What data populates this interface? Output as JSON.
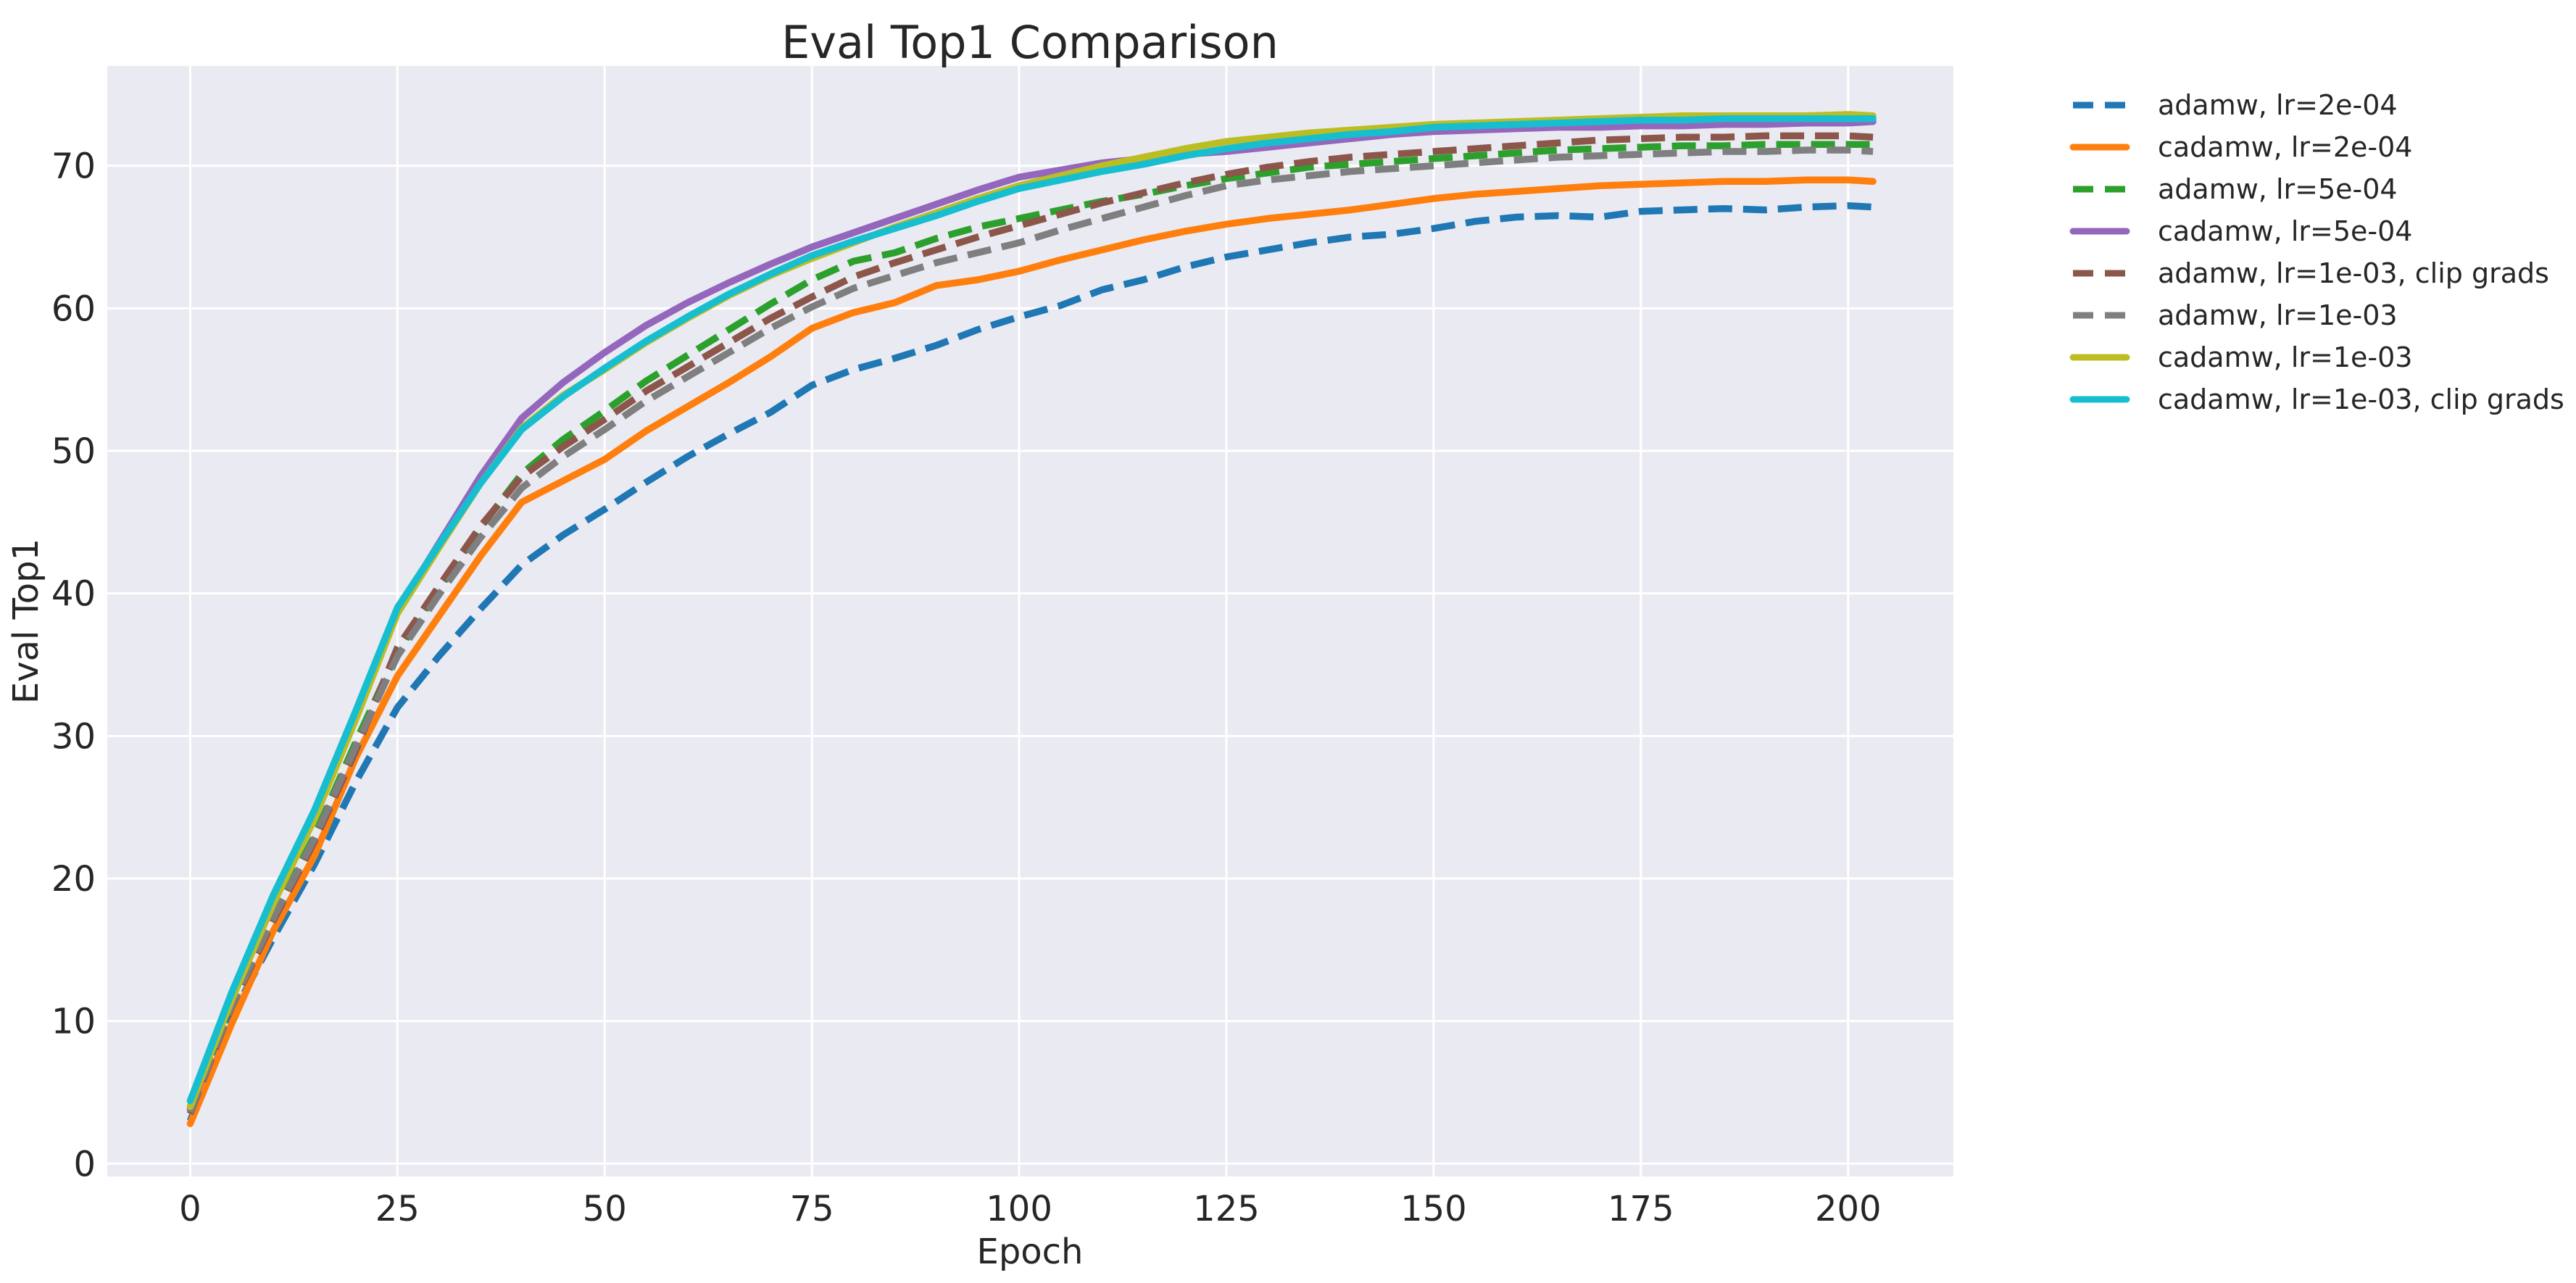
{
  "figure": {
    "background": "#ffffff",
    "axes_background": "#eaeaf2",
    "grid_color": "#ffffff",
    "text_color": "#262626"
  },
  "chart_data": {
    "type": "line",
    "title": "Eval Top1 Comparison",
    "xlabel": "Epoch",
    "ylabel": "Eval Top1",
    "grid": true,
    "legend_position": "outside-right",
    "xlim": [
      -10,
      212.7
    ],
    "ylim": [
      -0.9,
      77.0
    ],
    "x_ticks": [
      0,
      25,
      50,
      75,
      100,
      125,
      150,
      175,
      200
    ],
    "y_ticks": [
      0,
      10,
      20,
      30,
      40,
      50,
      60,
      70
    ],
    "x": [
      0,
      5,
      10,
      15,
      20,
      25,
      30,
      35,
      40,
      45,
      50,
      55,
      60,
      65,
      70,
      75,
      80,
      85,
      90,
      95,
      100,
      105,
      110,
      115,
      120,
      125,
      130,
      135,
      140,
      145,
      150,
      155,
      160,
      165,
      170,
      175,
      180,
      185,
      190,
      195,
      200,
      203
    ],
    "series": [
      {
        "name": "adamw, lr=2e-04",
        "color": "#1f77b4",
        "style": "dashed",
        "values": [
          3.0,
          10.3,
          15.8,
          21.0,
          26.8,
          32.0,
          35.6,
          38.9,
          42.0,
          44.1,
          45.9,
          47.8,
          49.6,
          51.2,
          52.7,
          54.6,
          55.7,
          56.5,
          57.4,
          58.5,
          59.4,
          60.2,
          61.3,
          62.0,
          62.9,
          63.6,
          64.1,
          64.6,
          65.0,
          65.2,
          65.6,
          66.1,
          66.4,
          66.5,
          66.4,
          66.8,
          66.9,
          67.0,
          66.9,
          67.1,
          67.2,
          67.1
        ]
      },
      {
        "name": "cadamw, lr=2e-04",
        "color": "#ff7f0e",
        "style": "solid",
        "values": [
          2.8,
          9.8,
          16.3,
          21.6,
          28.5,
          34.2,
          38.4,
          42.6,
          46.4,
          47.9,
          49.4,
          51.4,
          53.1,
          54.8,
          56.6,
          58.6,
          59.7,
          60.4,
          61.6,
          62.0,
          62.6,
          63.4,
          64.1,
          64.8,
          65.4,
          65.9,
          66.3,
          66.6,
          66.9,
          67.3,
          67.7,
          68.0,
          68.2,
          68.4,
          68.6,
          68.7,
          68.8,
          68.9,
          68.9,
          69.0,
          69.0,
          68.9
        ]
      },
      {
        "name": "adamw, lr=5e-04",
        "color": "#2ca02c",
        "style": "dashed",
        "values": [
          3.5,
          11.2,
          17.4,
          23.0,
          29.6,
          35.9,
          40.3,
          44.6,
          48.4,
          50.8,
          52.8,
          54.9,
          56.7,
          58.5,
          60.3,
          62.0,
          63.3,
          63.9,
          64.9,
          65.7,
          66.3,
          66.9,
          67.5,
          68.0,
          68.6,
          69.1,
          69.5,
          69.9,
          70.1,
          70.3,
          70.5,
          70.7,
          70.9,
          71.1,
          71.2,
          71.3,
          71.4,
          71.4,
          71.5,
          71.5,
          71.5,
          71.5
        ]
      },
      {
        "name": "cadamw, lr=5e-04",
        "color": "#9467bd",
        "style": "solid",
        "values": [
          3.8,
          11.8,
          18.4,
          24.4,
          31.6,
          38.8,
          43.5,
          48.2,
          52.3,
          54.8,
          56.9,
          58.8,
          60.4,
          61.8,
          63.1,
          64.3,
          65.3,
          66.3,
          67.3,
          68.3,
          69.2,
          69.7,
          70.2,
          70.5,
          70.8,
          71.0,
          71.3,
          71.6,
          71.9,
          72.2,
          72.4,
          72.5,
          72.6,
          72.7,
          72.7,
          72.8,
          72.8,
          72.9,
          72.9,
          73.0,
          73.0,
          73.1
        ]
      },
      {
        "name": "adamw, lr=1e-03, clip grads",
        "color": "#8c564b",
        "style": "dashed",
        "values": [
          3.5,
          11.0,
          17.0,
          22.6,
          29.0,
          36.2,
          40.5,
          44.7,
          48.2,
          50.3,
          52.2,
          54.2,
          55.9,
          57.6,
          59.3,
          60.8,
          62.2,
          63.2,
          64.1,
          65.0,
          65.8,
          66.6,
          67.4,
          68.1,
          68.8,
          69.4,
          69.9,
          70.3,
          70.6,
          70.8,
          71.0,
          71.2,
          71.4,
          71.6,
          71.8,
          71.9,
          72.0,
          72.0,
          72.1,
          72.1,
          72.1,
          72.0
        ]
      },
      {
        "name": "adamw, lr=1e-03",
        "color": "#7f7f7f",
        "style": "dashed",
        "values": [
          3.6,
          11.1,
          17.2,
          22.8,
          29.3,
          35.6,
          39.9,
          43.9,
          47.4,
          49.6,
          51.5,
          53.5,
          55.2,
          56.9,
          58.6,
          60.1,
          61.4,
          62.3,
          63.2,
          63.9,
          64.6,
          65.5,
          66.3,
          67.1,
          67.9,
          68.6,
          69.0,
          69.3,
          69.6,
          69.8,
          70.0,
          70.2,
          70.4,
          70.6,
          70.7,
          70.8,
          70.9,
          71.0,
          71.0,
          71.1,
          71.1,
          71.0
        ]
      },
      {
        "name": "cadamw, lr=1e-03",
        "color": "#bcbd22",
        "style": "solid",
        "values": [
          4.0,
          11.5,
          18.2,
          24.2,
          31.2,
          38.6,
          43.2,
          47.7,
          51.6,
          53.9,
          55.7,
          57.6,
          59.3,
          60.9,
          62.3,
          63.5,
          64.6,
          65.7,
          66.7,
          67.7,
          68.6,
          69.3,
          70.0,
          70.6,
          71.2,
          71.7,
          72.0,
          72.3,
          72.5,
          72.7,
          72.9,
          73.0,
          73.1,
          73.2,
          73.3,
          73.4,
          73.5,
          73.5,
          73.5,
          73.5,
          73.6,
          73.5
        ]
      },
      {
        "name": "cadamw, lr=1e-03, clip grads",
        "color": "#17becf",
        "style": "solid",
        "values": [
          4.4,
          12.0,
          18.8,
          24.8,
          31.8,
          39.0,
          43.4,
          47.7,
          51.5,
          53.8,
          55.8,
          57.7,
          59.4,
          61.0,
          62.4,
          63.7,
          64.7,
          65.6,
          66.5,
          67.5,
          68.4,
          69.0,
          69.6,
          70.1,
          70.7,
          71.2,
          71.6,
          71.9,
          72.2,
          72.4,
          72.7,
          72.8,
          72.9,
          73.0,
          73.1,
          73.2,
          73.2,
          73.3,
          73.3,
          73.3,
          73.3,
          73.3
        ]
      }
    ]
  }
}
